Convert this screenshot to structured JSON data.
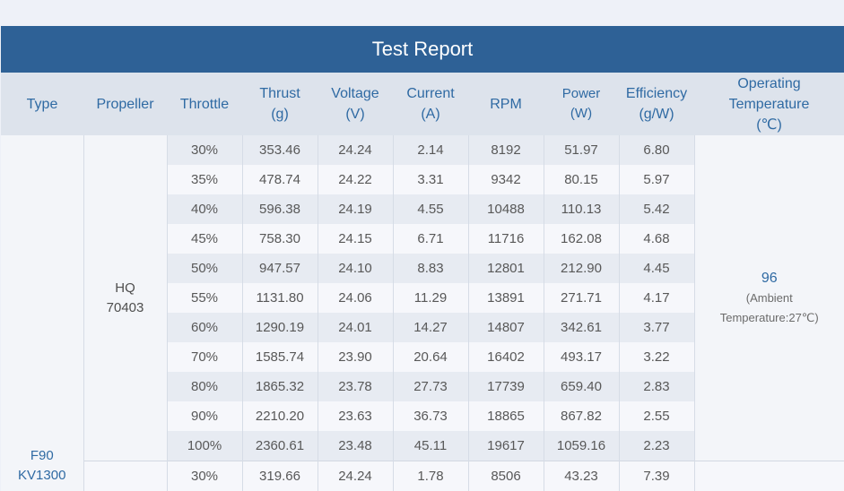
{
  "title": "Test Report",
  "headers": {
    "type": "Type",
    "propeller": "Propeller",
    "throttle": "Throttle",
    "thrust": [
      "Thrust",
      "(g)"
    ],
    "voltage": [
      "Voltage",
      "(V)"
    ],
    "current": [
      "Current",
      "(A)"
    ],
    "rpm": "RPM",
    "power": [
      "Power",
      "(W)"
    ],
    "efficiency": [
      "Efficiency",
      "(g/W)"
    ],
    "temp": [
      "Operating",
      "Temperature",
      "(℃)"
    ]
  },
  "motor": [
    "F90",
    "KV1300"
  ],
  "propeller": [
    "HQ",
    "70403"
  ],
  "temperature": {
    "value": "96",
    "note1": "(Ambient",
    "note2": "Temperature:27℃)"
  },
  "rows": [
    [
      "30%",
      "353.46",
      "24.24",
      "2.14",
      "8192",
      "51.97",
      "6.80"
    ],
    [
      "35%",
      "478.74",
      "24.22",
      "3.31",
      "9342",
      "80.15",
      "5.97"
    ],
    [
      "40%",
      "596.38",
      "24.19",
      "4.55",
      "10488",
      "110.13",
      "5.42"
    ],
    [
      "45%",
      "758.30",
      "24.15",
      "6.71",
      "11716",
      "162.08",
      "4.68"
    ],
    [
      "50%",
      "947.57",
      "24.10",
      "8.83",
      "12801",
      "212.90",
      "4.45"
    ],
    [
      "55%",
      "1131.80",
      "24.06",
      "11.29",
      "13891",
      "271.71",
      "4.17"
    ],
    [
      "60%",
      "1290.19",
      "24.01",
      "14.27",
      "14807",
      "342.61",
      "3.77"
    ],
    [
      "70%",
      "1585.74",
      "23.90",
      "20.64",
      "16402",
      "493.17",
      "3.22"
    ],
    [
      "80%",
      "1865.32",
      "23.78",
      "27.73",
      "17739",
      "659.40",
      "2.83"
    ],
    [
      "90%",
      "2210.20",
      "23.63",
      "36.73",
      "18865",
      "867.82",
      "2.55"
    ],
    [
      "100%",
      "2360.61",
      "23.48",
      "45.11",
      "19617",
      "1059.16",
      "2.23"
    ]
  ],
  "next_row": [
    "30%",
    "319.66",
    "24.24",
    "1.78",
    "8506",
    "43.23",
    "7.39"
  ]
}
